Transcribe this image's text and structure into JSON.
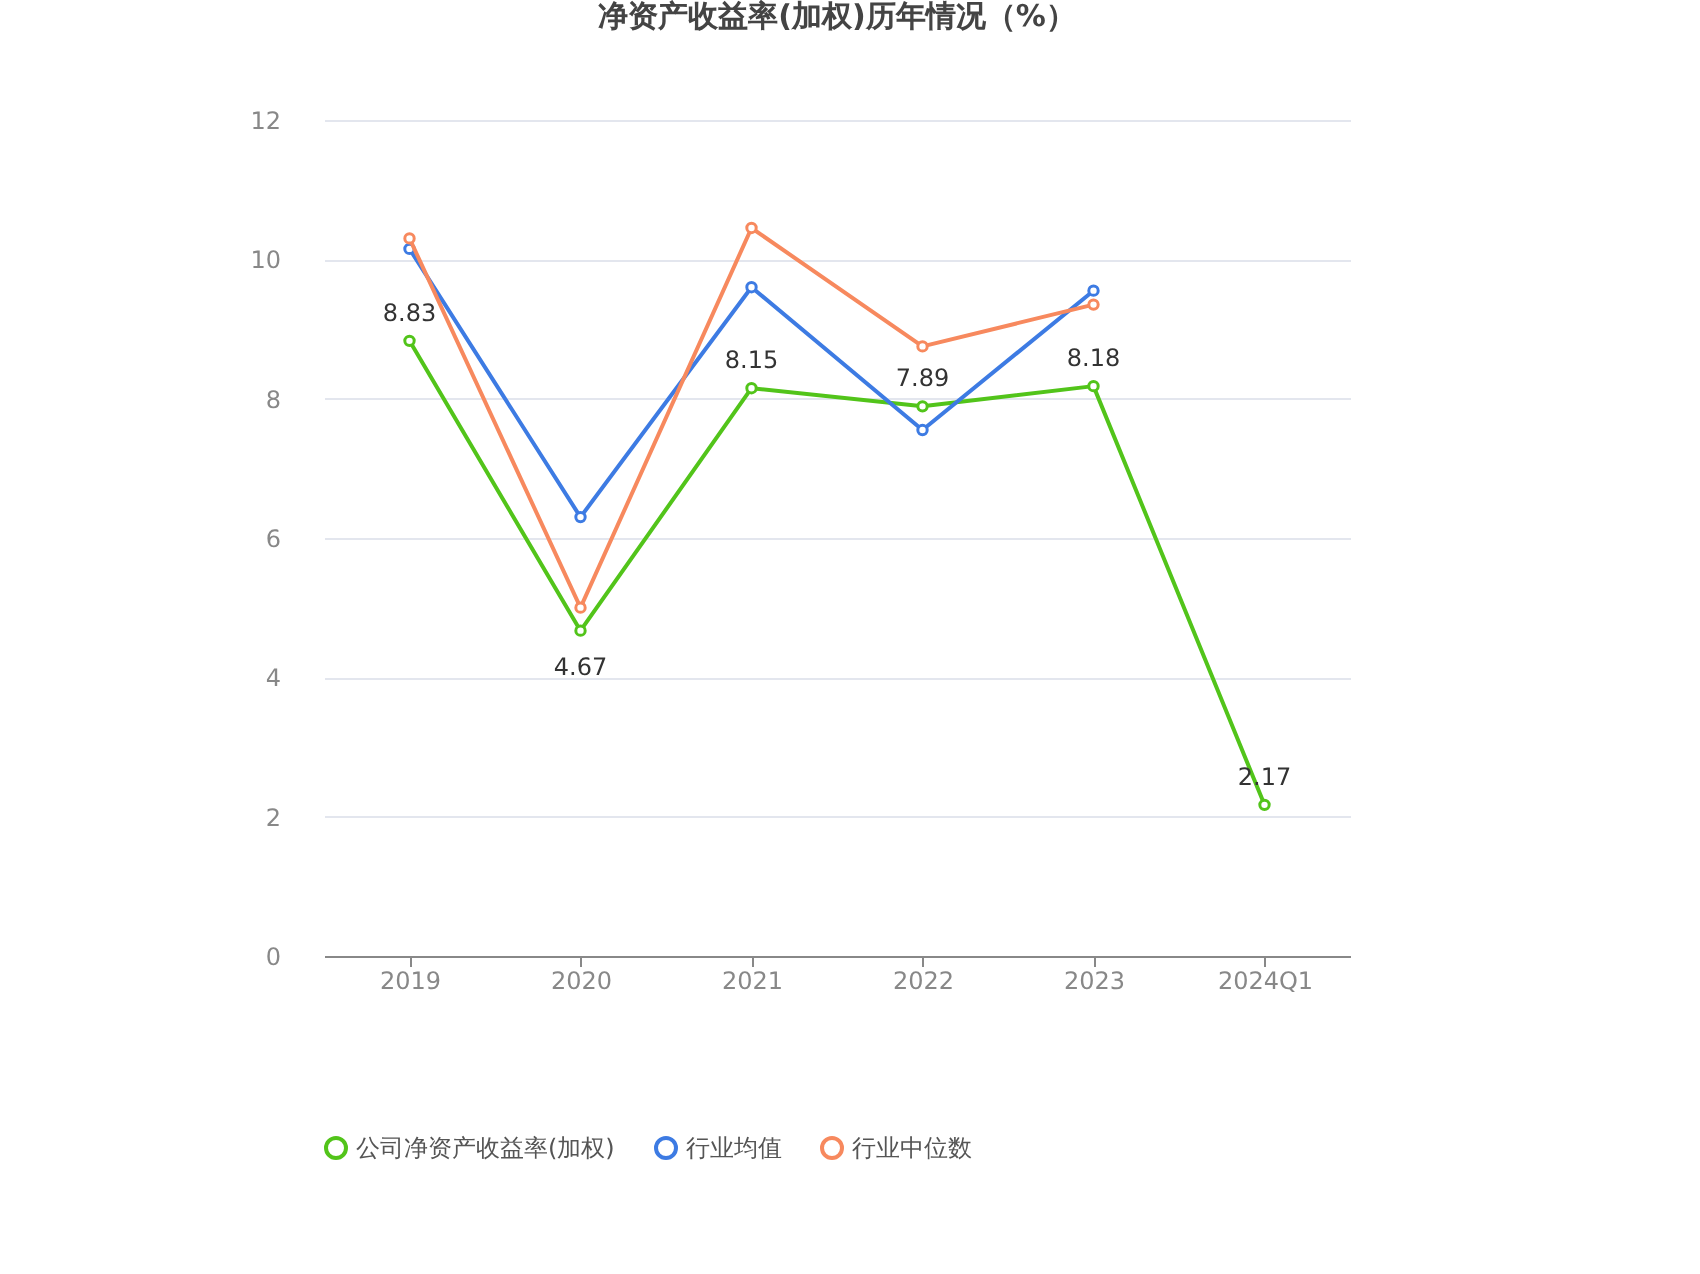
{
  "chart_data": {
    "type": "line",
    "title": "净资产收益率(加权)历年情况（%）",
    "categories": [
      "2019",
      "2020",
      "2021",
      "2022",
      "2023",
      "2024Q1"
    ],
    "series": [
      {
        "name": "公司净资产收益率(加权)",
        "color": "#52c41a",
        "values": [
          8.83,
          4.67,
          8.15,
          7.89,
          8.18,
          2.17
        ],
        "value_labels": [
          "8.83",
          "4.67",
          "8.15",
          "7.89",
          "8.18",
          "2.17"
        ]
      },
      {
        "name": "行业均值",
        "color": "#3d7be3",
        "values": [
          10.15,
          6.3,
          9.6,
          7.55,
          9.55,
          null
        ]
      },
      {
        "name": "行业中位数",
        "color": "#f7895e",
        "values": [
          10.3,
          5.0,
          10.45,
          8.75,
          9.35,
          null
        ]
      }
    ],
    "ylim": [
      0,
      12
    ],
    "yticks": [
      0,
      2,
      4,
      6,
      8,
      10,
      12
    ],
    "grid": "y",
    "legend": "bottom",
    "marker": "circle",
    "line_style": "solid"
  }
}
